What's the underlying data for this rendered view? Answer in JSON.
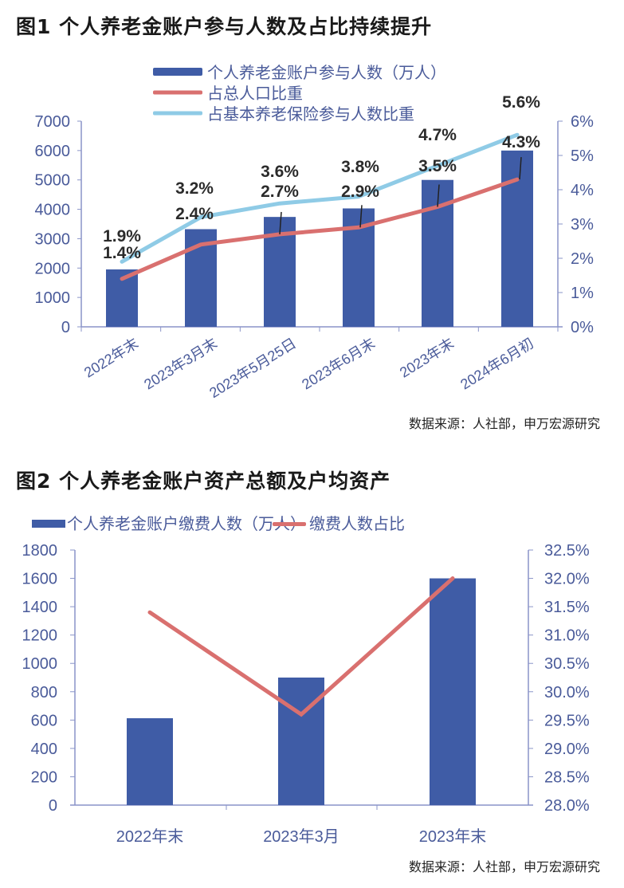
{
  "figure1": {
    "title": "图1  个人养老金账户参与人数及占比持续提升",
    "source": "数据来源：人社部，申万宏源研究"
  },
  "figure2": {
    "title": "图2  个人养老金账户资产总额及户均资产",
    "source": "数据来源：人社部，申万宏源研究"
  },
  "colors": {
    "bar": "#3f5ca6",
    "red_line": "#d9706f",
    "blue_line": "#8fcbe6",
    "axis": "#8a94c8",
    "tick_text": "#4a5b9a",
    "label_text": "#2b2b2b"
  },
  "chart_data": [
    {
      "type": "bar",
      "title": "个人养老金账户参与人数及占比持续提升",
      "categories": [
        "2022年末",
        "2023年3月末",
        "2023年5月25日",
        "2023年6月末",
        "2023年末",
        "2024年6月初"
      ],
      "series": [
        {
          "name": "个人养老金账户参与人数（万人）",
          "type": "bar",
          "axis": "left",
          "values": [
            1954,
            3324,
            3740,
            4030,
            5000,
            6000
          ]
        },
        {
          "name": "占总人口比重",
          "type": "line",
          "axis": "right",
          "values": [
            1.4,
            2.4,
            2.7,
            2.9,
            3.5,
            4.3
          ],
          "labels": [
            "1.4%",
            "2.4%",
            "2.7%",
            "2.9%",
            "3.5%",
            "4.3%"
          ]
        },
        {
          "name": "占基本养老保险参与人数比重",
          "type": "line",
          "axis": "right",
          "values": [
            1.9,
            3.2,
            3.6,
            3.8,
            4.7,
            5.6
          ],
          "labels": [
            "1.9%",
            "3.2%",
            "3.6%",
            "3.8%",
            "4.7%",
            "5.6%"
          ]
        }
      ],
      "left_axis": {
        "ylim": [
          0,
          7000
        ],
        "ticks": [
          "0",
          "1000",
          "2000",
          "3000",
          "4000",
          "5000",
          "6000",
          "7000"
        ]
      },
      "right_axis": {
        "ylim": [
          0,
          6
        ],
        "ticks": [
          "0%",
          "1%",
          "2%",
          "3%",
          "4%",
          "5%",
          "6%"
        ]
      },
      "legend": [
        "个人养老金账户参与人数（万人）",
        "占总人口比重",
        "占基本养老保险参与人数比重"
      ],
      "legend_position": "top",
      "grid": false
    },
    {
      "type": "bar",
      "title": "个人养老金账户资产总额及户均资产",
      "categories": [
        "2022年末",
        "2023年3月",
        "2023年末"
      ],
      "series": [
        {
          "name": "个人养老金账户缴费人数（万人）",
          "type": "bar",
          "axis": "left",
          "values": [
            613,
            900,
            1600
          ]
        },
        {
          "name": "缴费人数占比",
          "type": "line",
          "axis": "right",
          "values": [
            31.4,
            29.6,
            32.0
          ]
        }
      ],
      "left_axis": {
        "ylim": [
          0,
          1800
        ],
        "ticks": [
          "0",
          "200",
          "400",
          "600",
          "800",
          "1000",
          "1200",
          "1400",
          "1600",
          "1800"
        ]
      },
      "right_axis": {
        "ylim": [
          28.0,
          32.5
        ],
        "ticks": [
          "28.0%",
          "28.5%",
          "29.0%",
          "29.5%",
          "30.0%",
          "30.5%",
          "31.0%",
          "31.5%",
          "32.0%",
          "32.5%"
        ]
      },
      "legend": [
        "个人养老金账户缴费人数（万人）",
        "缴费人数占比"
      ],
      "legend_position": "top",
      "grid": false
    }
  ]
}
